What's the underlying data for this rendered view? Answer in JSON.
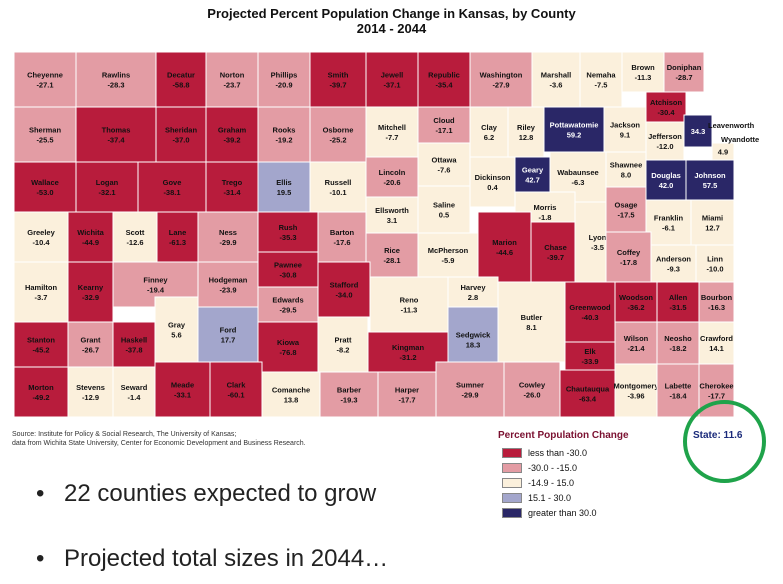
{
  "title_line1": "Projected Percent Population Change in Kansas, by County",
  "title_line2": "2014 - 2044",
  "source_line1": "Source: Institute for Policy & Social Research, The University of Kansas;",
  "source_line2": "data from Wichita State University, Center for Economic Development and Business Research.",
  "legend": {
    "title": "Percent Population Change",
    "items": [
      {
        "label": "less than -30.0",
        "color": "#b81c3c"
      },
      {
        "label": "-30.0 - -15.0",
        "color": "#e39ca4"
      },
      {
        "label": "-14.9 - 15.0",
        "color": "#fbf0dc"
      },
      {
        "label": "15.1 - 30.0",
        "color": "#a3a6cc"
      },
      {
        "label": "greater than 30.0",
        "color": "#2a2767"
      }
    ]
  },
  "state_label": "State: 11.6",
  "bullets": [
    "22 counties expected to grow",
    "Projected total sizes in 2044…"
  ],
  "external_labels": {
    "leavenworth": "Leavenworth",
    "wyandotte": "Wyandotte"
  },
  "counties": [
    {
      "name": "Cheyenne",
      "value": "-27.1"
    },
    {
      "name": "Rawlins",
      "value": "-28.3"
    },
    {
      "name": "Decatur",
      "value": "-58.8"
    },
    {
      "name": "Norton",
      "value": "-23.7"
    },
    {
      "name": "Phillips",
      "value": "-20.9"
    },
    {
      "name": "Smith",
      "value": "-39.7"
    },
    {
      "name": "Jewell",
      "value": "-37.1"
    },
    {
      "name": "Republic",
      "value": "-35.4"
    },
    {
      "name": "Washington",
      "value": "-27.9"
    },
    {
      "name": "Marshall",
      "value": "-3.6"
    },
    {
      "name": "Nemaha",
      "value": "-7.5"
    },
    {
      "name": "Brown",
      "value": "-11.3"
    },
    {
      "name": "Doniphan",
      "value": "-28.7"
    },
    {
      "name": "Sherman",
      "value": "-25.5"
    },
    {
      "name": "Thomas",
      "value": "-37.4"
    },
    {
      "name": "Sheridan",
      "value": "-37.0"
    },
    {
      "name": "Graham",
      "value": "-39.2"
    },
    {
      "name": "Rooks",
      "value": "-19.2"
    },
    {
      "name": "Osborne",
      "value": "-25.2"
    },
    {
      "name": "Mitchell",
      "value": "-7.7"
    },
    {
      "name": "Cloud",
      "value": "-17.1"
    },
    {
      "name": "Clay",
      "value": "6.2"
    },
    {
      "name": "Riley",
      "value": "12.8"
    },
    {
      "name": "Pottawatomie",
      "value": "59.2"
    },
    {
      "name": "Jackson",
      "value": "9.1"
    },
    {
      "name": "Atchison",
      "value": "-30.4"
    },
    {
      "name": "Jefferson",
      "value": "-12.0"
    },
    {
      "name": "Leavenworth",
      "value": "34.3"
    },
    {
      "name": "Wyandotte",
      "value": "4.9"
    },
    {
      "name": "Wallace",
      "value": "-53.0"
    },
    {
      "name": "Logan",
      "value": "-32.1"
    },
    {
      "name": "Gove",
      "value": "-38.1"
    },
    {
      "name": "Trego",
      "value": "-31.4"
    },
    {
      "name": "Ellis",
      "value": "19.5"
    },
    {
      "name": "Russell",
      "value": "-10.1"
    },
    {
      "name": "Lincoln",
      "value": "-20.6"
    },
    {
      "name": "Ottawa",
      "value": "-7.6"
    },
    {
      "name": "Dickinson",
      "value": "0.4"
    },
    {
      "name": "Geary",
      "value": "42.7"
    },
    {
      "name": "Wabaunsee",
      "value": "-6.3"
    },
    {
      "name": "Shawnee",
      "value": "8.0"
    },
    {
      "name": "Douglas",
      "value": "42.0"
    },
    {
      "name": "Johnson",
      "value": "57.5"
    },
    {
      "name": "Ellsworth",
      "value": "3.1"
    },
    {
      "name": "Saline",
      "value": "0.5"
    },
    {
      "name": "Morris",
      "value": "-1.8"
    },
    {
      "name": "Greeley",
      "value": "-10.4"
    },
    {
      "name": "Wichita",
      "value": "-44.9"
    },
    {
      "name": "Scott",
      "value": "-12.6"
    },
    {
      "name": "Lane",
      "value": "-61.3"
    },
    {
      "name": "Ness",
      "value": "-29.9"
    },
    {
      "name": "Rush",
      "value": "-35.3"
    },
    {
      "name": "Barton",
      "value": "-17.6"
    },
    {
      "name": "Rice",
      "value": "-28.1"
    },
    {
      "name": "McPherson",
      "value": "-5.9"
    },
    {
      "name": "Marion",
      "value": "-44.6"
    },
    {
      "name": "Chase",
      "value": "-39.7"
    },
    {
      "name": "Lyon",
      "value": "-3.5"
    },
    {
      "name": "Osage",
      "value": "-17.5"
    },
    {
      "name": "Franklin",
      "value": "-6.1"
    },
    {
      "name": "Miami",
      "value": "12.7"
    },
    {
      "name": "Hamilton",
      "value": "-3.7"
    },
    {
      "name": "Kearny",
      "value": "-32.9"
    },
    {
      "name": "Finney",
      "value": "-19.4"
    },
    {
      "name": "Hodgeman",
      "value": "-23.9"
    },
    {
      "name": "Pawnee",
      "value": "-30.8"
    },
    {
      "name": "Stafford",
      "value": "-34.0"
    },
    {
      "name": "Reno",
      "value": "-11.3"
    },
    {
      "name": "Harvey",
      "value": "2.8"
    },
    {
      "name": "Butler",
      "value": "8.1"
    },
    {
      "name": "Greenwood",
      "value": "-40.3"
    },
    {
      "name": "Woodson",
      "value": "-36.2"
    },
    {
      "name": "Allen",
      "value": "-31.5"
    },
    {
      "name": "Bourbon",
      "value": "-16.3"
    },
    {
      "name": "Coffey",
      "value": "-17.8"
    },
    {
      "name": "Anderson",
      "value": "-9.3"
    },
    {
      "name": "Linn",
      "value": "-10.0"
    },
    {
      "name": "Gray",
      "value": "5.6"
    },
    {
      "name": "Edwards",
      "value": "-29.5"
    },
    {
      "name": "Stanton",
      "value": "-45.2"
    },
    {
      "name": "Grant",
      "value": "-26.7"
    },
    {
      "name": "Haskell",
      "value": "-37.8"
    },
    {
      "name": "Ford",
      "value": "17.7"
    },
    {
      "name": "Kiowa",
      "value": "-76.8"
    },
    {
      "name": "Pratt",
      "value": "-8.2"
    },
    {
      "name": "Kingman",
      "value": "-31.2"
    },
    {
      "name": "Sedgwick",
      "value": "18.3"
    },
    {
      "name": "Wilson",
      "value": "-21.4"
    },
    {
      "name": "Neosho",
      "value": "-18.2"
    },
    {
      "name": "Crawford",
      "value": "14.1"
    },
    {
      "name": "Elk",
      "value": "-33.9"
    },
    {
      "name": "Morton",
      "value": "-49.2"
    },
    {
      "name": "Stevens",
      "value": "-12.9"
    },
    {
      "name": "Seward",
      "value": "-1.4"
    },
    {
      "name": "Meade",
      "value": "-33.1"
    },
    {
      "name": "Clark",
      "value": "-60.1"
    },
    {
      "name": "Comanche",
      "value": "13.8"
    },
    {
      "name": "Barber",
      "value": "-19.3"
    },
    {
      "name": "Harper",
      "value": "-17.7"
    },
    {
      "name": "Sumner",
      "value": "-29.9"
    },
    {
      "name": "Cowley",
      "value": "-26.0"
    },
    {
      "name": "Chautauqua",
      "value": "-63.4"
    },
    {
      "name": "Montgomery",
      "value": "-3.96"
    },
    {
      "name": "Labette",
      "value": "-18.4"
    },
    {
      "name": "Cherokee",
      "value": "-17.7"
    }
  ]
}
